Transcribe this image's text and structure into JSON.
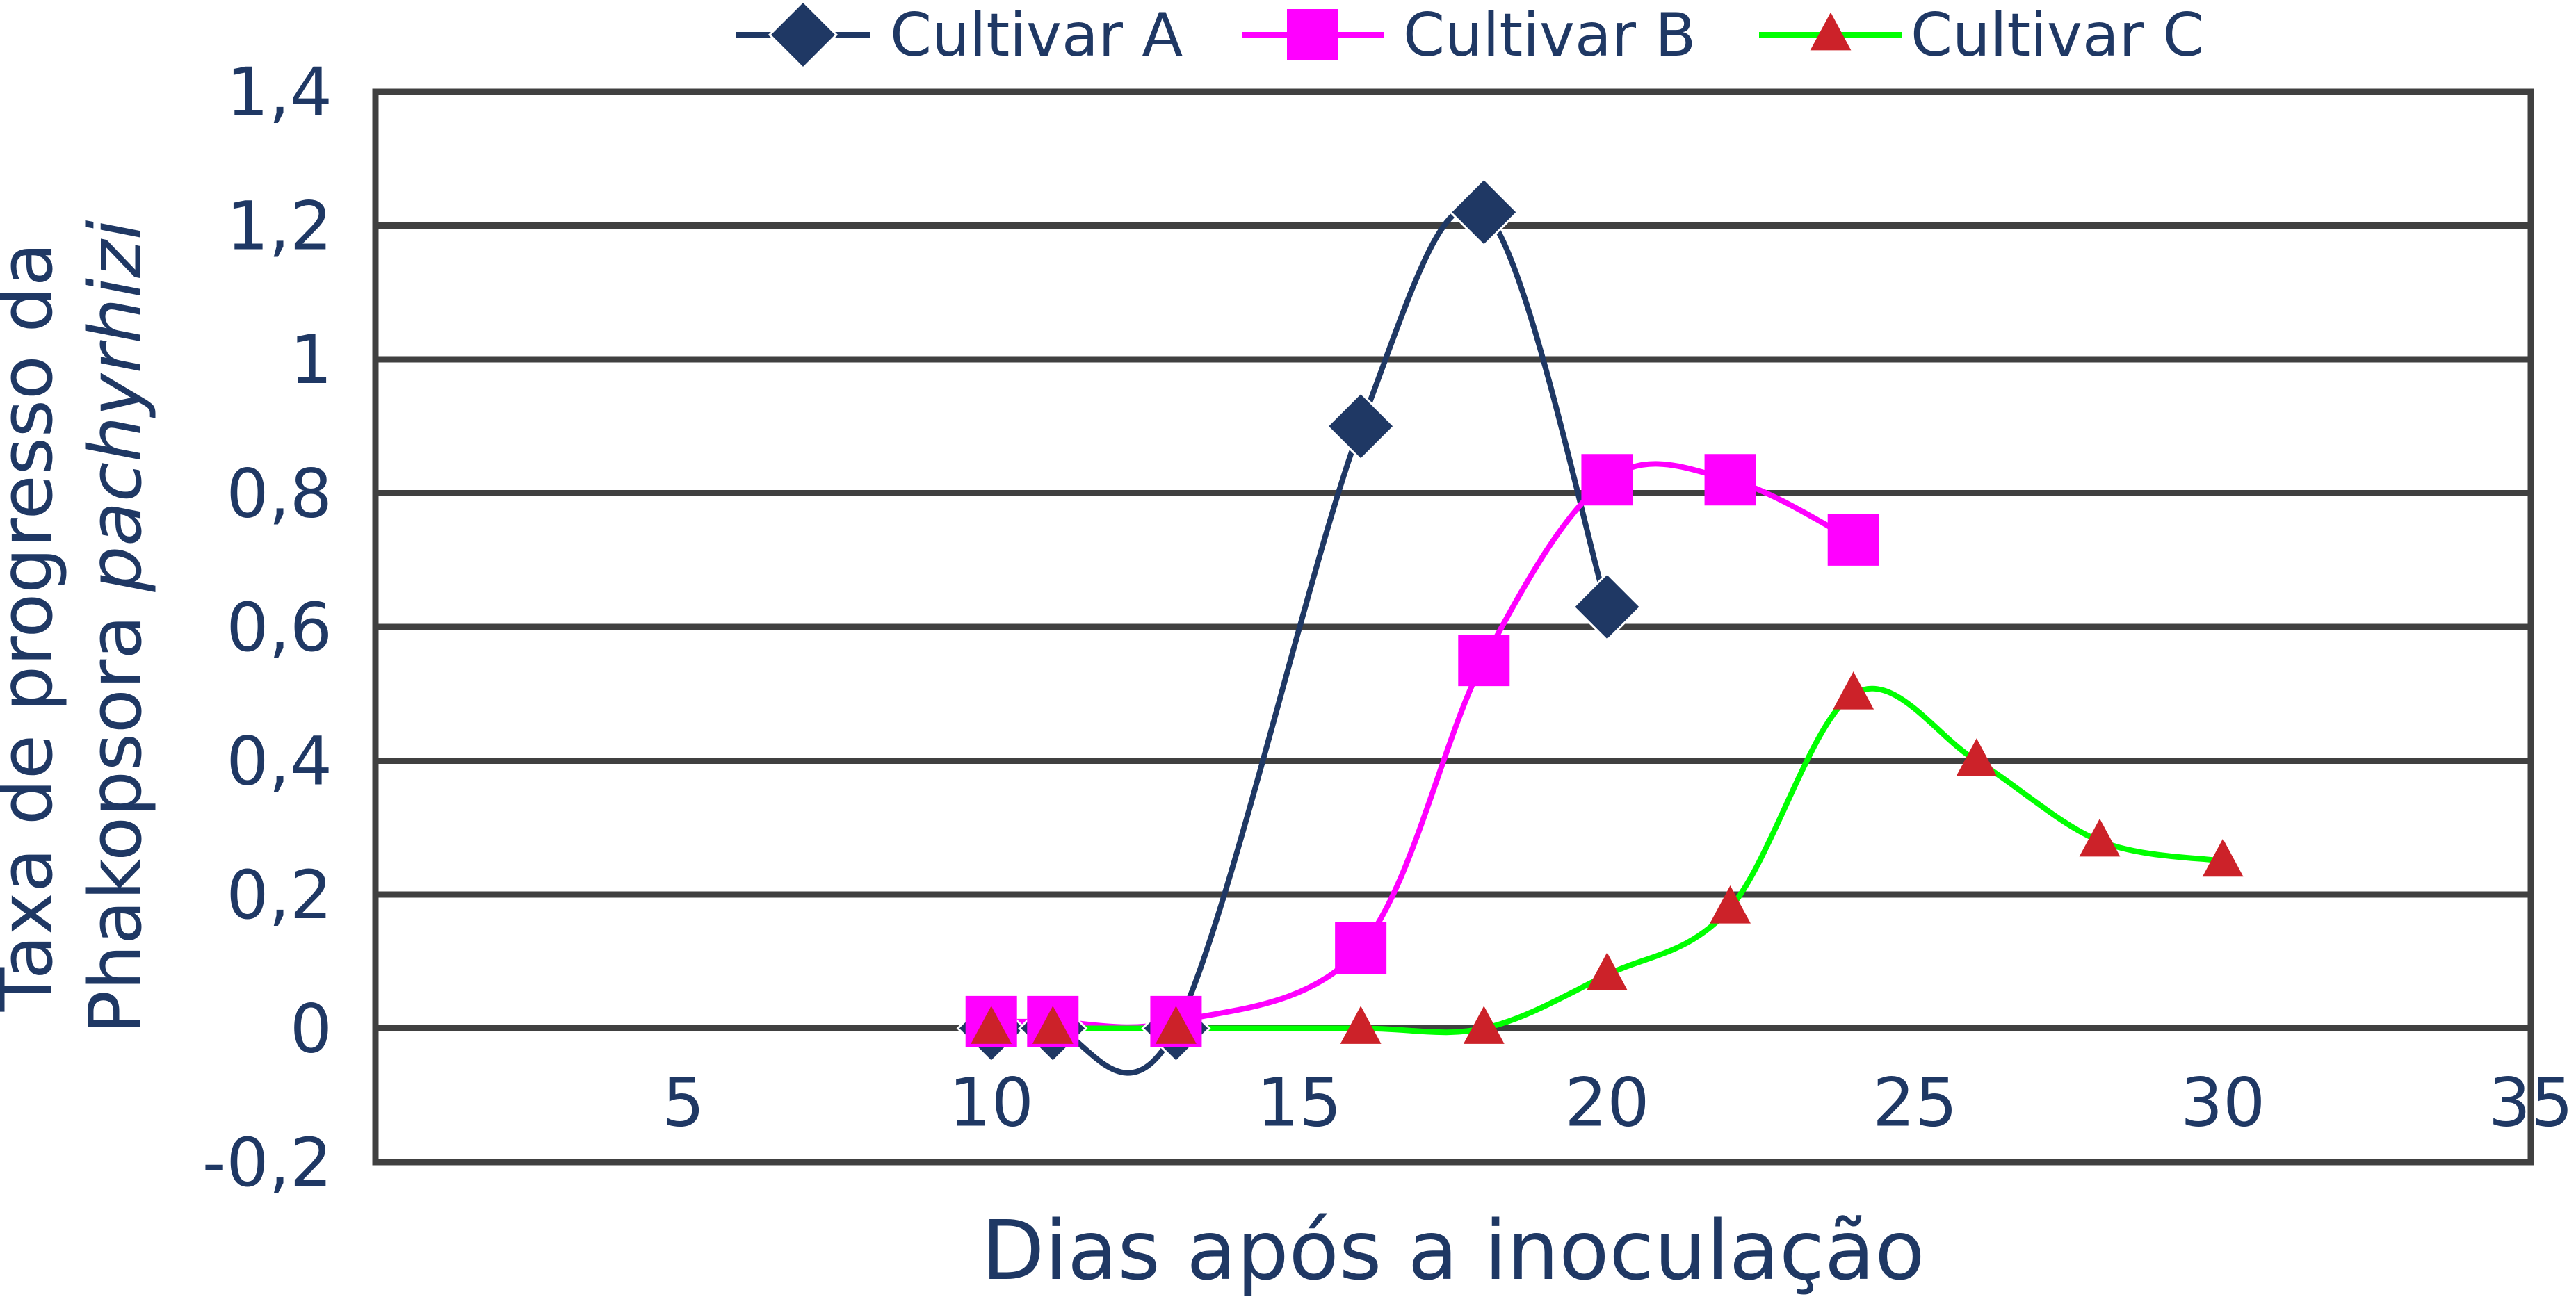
{
  "chart_data": {
    "type": "line",
    "xlabel": "Dias após a inoculação",
    "ylabel": {
      "line1": "Taxa de progresso da",
      "line2_prefix": "Phakopsora ",
      "line2_italic": "pachyrhizi"
    },
    "x_ticks": [
      "5",
      "10",
      "15",
      "20",
      "25",
      "30",
      "35"
    ],
    "y_ticks": [
      "-0,2",
      "0",
      "0,2",
      "0,4",
      "0,6",
      "0,8",
      "1",
      "1,2",
      "1,4"
    ],
    "xlim": [
      0,
      35
    ],
    "ylim": [
      -0.2,
      1.4
    ],
    "x_tick_values": [
      5,
      10,
      15,
      20,
      25,
      30,
      35
    ],
    "y_tick_values": [
      -0.2,
      0,
      0.2,
      0.4,
      0.6,
      0.8,
      1.0,
      1.2,
      1.4
    ],
    "grid": "horizontal",
    "legend": "top",
    "smooth": true,
    "series": [
      {
        "name": "Cultivar A",
        "marker": "diamond",
        "color": "#1f3864",
        "x": [
          10,
          11,
          13,
          16,
          18,
          20
        ],
        "y": [
          0.0,
          0.0,
          0.0,
          0.9,
          1.22,
          0.63
        ]
      },
      {
        "name": "Cultivar B",
        "marker": "square",
        "line_color": "#ff00ff",
        "marker_color": "#ff00ff",
        "x": [
          10,
          11,
          13,
          16,
          18,
          20,
          22,
          24
        ],
        "y": [
          0.01,
          0.01,
          0.01,
          0.12,
          0.55,
          0.82,
          0.82,
          0.73
        ]
      },
      {
        "name": "Cultivar C",
        "marker": "triangle",
        "line_color": "#00ff00",
        "marker_color": "#cc2229",
        "x": [
          10,
          11,
          13,
          16,
          18,
          20,
          22,
          24,
          26,
          28,
          30
        ],
        "y": [
          0.0,
          0.0,
          0.0,
          0.0,
          0.0,
          0.08,
          0.18,
          0.5,
          0.4,
          0.28,
          0.25
        ]
      }
    ]
  }
}
